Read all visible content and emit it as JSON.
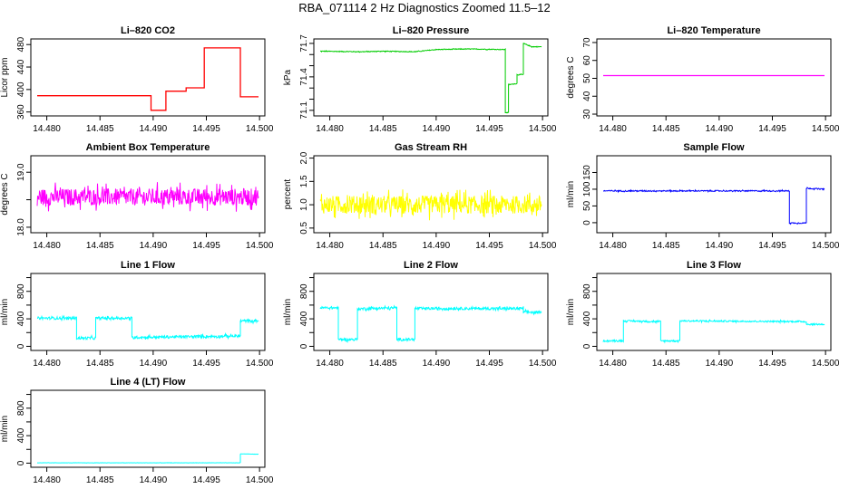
{
  "page": {
    "title": "RBA_071114  2 Hz Diagnostics Zoomed 11.5–12"
  },
  "colors": {
    "red": "#ff0000",
    "green": "#00cc00",
    "magenta": "#ff00ff",
    "yellow": "#ffff00",
    "blue": "#0000ff",
    "cyan": "#00ffff"
  },
  "chart_data": [
    {
      "type": "line",
      "title": "Li–820 CO2",
      "ylabel": "Licor ppm",
      "color": "#ff0000",
      "xlim": [
        14.4785,
        14.5005
      ],
      "ylim": [
        353,
        490
      ],
      "xticks": [
        14.48,
        14.485,
        14.49,
        14.495,
        14.5
      ],
      "xticklabels": [
        "14.480",
        "14.485",
        "14.490",
        "14.495",
        "14.500"
      ],
      "yticks": [
        360,
        400,
        440,
        480
      ],
      "yticklabels": [
        "360",
        "400",
        "440",
        "480"
      ],
      "noise": 0,
      "x": [
        14.4791,
        14.4898,
        14.4898,
        14.4912,
        14.4912,
        14.4931,
        14.4931,
        14.4948,
        14.4948,
        14.4982,
        14.4982,
        14.4999
      ],
      "y": [
        389,
        389,
        363,
        363,
        397,
        397,
        403,
        403,
        474,
        474,
        387,
        387
      ]
    },
    {
      "type": "line",
      "title": "Li–820 Pressure",
      "ylabel": "kPa",
      "color": "#00cc00",
      "xlim": [
        14.4785,
        14.5005
      ],
      "ylim": [
        71.05,
        71.74
      ],
      "xticks": [
        14.48,
        14.485,
        14.49,
        14.495,
        14.5
      ],
      "xticklabels": [
        "14.480",
        "14.485",
        "14.490",
        "14.495",
        "14.500"
      ],
      "yticks": [
        71.1,
        71.4,
        71.7
      ],
      "yticklabels": [
        "71.1",
        "71.4",
        "71.7"
      ],
      "ytickminor": [
        71.2,
        71.3,
        71.5,
        71.6
      ],
      "noise": 0.006,
      "x": [
        14.4791,
        14.483,
        14.485,
        14.488,
        14.49,
        14.493,
        14.4965,
        14.4965,
        14.4968,
        14.4968,
        14.4976,
        14.4976,
        14.4982,
        14.4982,
        14.499,
        14.4999
      ],
      "y": [
        71.63,
        71.625,
        71.63,
        71.625,
        71.645,
        71.65,
        71.645,
        71.08,
        71.08,
        71.33,
        71.34,
        71.42,
        71.42,
        71.7,
        71.67,
        71.67
      ]
    },
    {
      "type": "line",
      "title": "Li–820 Temperature",
      "ylabel": "degrees C",
      "color": "#ff00ff",
      "xlim": [
        14.4785,
        14.5005
      ],
      "ylim": [
        29,
        72
      ],
      "xticks": [
        14.48,
        14.485,
        14.49,
        14.495,
        14.5
      ],
      "xticklabels": [
        "14.480",
        "14.485",
        "14.490",
        "14.495",
        "14.500"
      ],
      "yticks": [
        30,
        40,
        50,
        60,
        70
      ],
      "yticklabels": [
        "30",
        "40",
        "50",
        "60",
        "70"
      ],
      "noise": 0,
      "x": [
        14.4791,
        14.4999
      ],
      "y": [
        51.5,
        51.5
      ]
    },
    {
      "type": "line",
      "title": "Ambient Box Temperature",
      "ylabel": "degrees C",
      "color": "#ff00ff",
      "xlim": [
        14.4785,
        14.5005
      ],
      "ylim": [
        17.9,
        19.3
      ],
      "xticks": [
        14.48,
        14.485,
        14.49,
        14.495,
        14.5
      ],
      "xticklabels": [
        "14.480",
        "14.485",
        "14.490",
        "14.495",
        "14.500"
      ],
      "yticks": [
        18.0,
        18.5,
        19.0
      ],
      "yticklabels": [
        "18.0",
        "",
        "19.0"
      ],
      "noise": 0.28,
      "x": [
        14.4791,
        14.4999
      ],
      "y": [
        18.55,
        18.55
      ]
    },
    {
      "type": "line",
      "title": "Gas Stream RH",
      "ylabel": "percent",
      "color": "#ffff00",
      "xlim": [
        14.4785,
        14.5005
      ],
      "ylim": [
        0.4,
        2.05
      ],
      "xticks": [
        14.48,
        14.485,
        14.49,
        14.495,
        14.5
      ],
      "xticklabels": [
        "14.480",
        "14.485",
        "14.490",
        "14.495",
        "14.500"
      ],
      "yticks": [
        0.5,
        1.0,
        1.5,
        2.0
      ],
      "yticklabels": [
        "0.5",
        "1.0",
        "1.5",
        "2.0"
      ],
      "noise": 0.35,
      "x": [
        14.4791,
        14.4999
      ],
      "y": [
        1.0,
        1.0
      ]
    },
    {
      "type": "line",
      "title": "Sample Flow",
      "ylabel": "ml/min",
      "color": "#0000ff",
      "xlim": [
        14.4785,
        14.5005
      ],
      "ylim": [
        -30,
        200
      ],
      "xticks": [
        14.48,
        14.485,
        14.49,
        14.495,
        14.5
      ],
      "xticklabels": [
        "14.480",
        "14.485",
        "14.490",
        "14.495",
        "14.500"
      ],
      "yticks": [
        0,
        50,
        100,
        150
      ],
      "yticklabels": [
        "0",
        "50",
        "100",
        "150"
      ],
      "noise": 3,
      "x": [
        14.4791,
        14.4966,
        14.4966,
        14.4982,
        14.4982,
        14.4999
      ],
      "y": [
        95,
        95,
        -1,
        -1,
        103,
        100
      ]
    },
    {
      "type": "line",
      "title": "Line 1 Flow",
      "ylabel": "ml/min",
      "color": "#00ffff",
      "xlim": [
        14.4785,
        14.5005
      ],
      "ylim": [
        -60,
        1060
      ],
      "xticks": [
        14.48,
        14.485,
        14.49,
        14.495,
        14.5
      ],
      "xticklabels": [
        "14.480",
        "14.485",
        "14.490",
        "14.495",
        "14.500"
      ],
      "yticks": [
        0,
        400,
        800
      ],
      "yticklabels": [
        "0",
        "400",
        "800"
      ],
      "ytickminor": [
        200,
        600,
        1000
      ],
      "noise": 35,
      "x": [
        14.4791,
        14.4828,
        14.4828,
        14.4846,
        14.4846,
        14.488,
        14.488,
        14.4982,
        14.4982,
        14.4999
      ],
      "y": [
        410,
        410,
        120,
        120,
        410,
        410,
        130,
        150,
        370,
        370
      ]
    },
    {
      "type": "line",
      "title": "Line 2 Flow",
      "ylabel": "ml/min",
      "color": "#00ffff",
      "xlim": [
        14.4785,
        14.5005
      ],
      "ylim": [
        -60,
        1060
      ],
      "xticks": [
        14.48,
        14.485,
        14.49,
        14.495,
        14.5
      ],
      "xticklabels": [
        "14.480",
        "14.485",
        "14.490",
        "14.495",
        "14.500"
      ],
      "yticks": [
        0,
        400,
        800
      ],
      "yticklabels": [
        "0",
        "400",
        "800"
      ],
      "ytickminor": [
        200,
        600,
        1000
      ],
      "noise": 35,
      "x": [
        14.4791,
        14.4808,
        14.4808,
        14.4826,
        14.4826,
        14.4863,
        14.4863,
        14.488,
        14.488,
        14.4982,
        14.4982,
        14.4999
      ],
      "y": [
        560,
        560,
        100,
        100,
        545,
        560,
        100,
        100,
        550,
        550,
        500,
        490
      ]
    },
    {
      "type": "line",
      "title": "Line 3 Flow",
      "ylabel": "ml/min",
      "color": "#00ffff",
      "xlim": [
        14.4785,
        14.5005
      ],
      "ylim": [
        -60,
        1060
      ],
      "xticks": [
        14.48,
        14.485,
        14.49,
        14.495,
        14.5
      ],
      "xticklabels": [
        "14.480",
        "14.485",
        "14.490",
        "14.495",
        "14.500"
      ],
      "yticks": [
        0,
        400,
        800
      ],
      "yticklabels": [
        "0",
        "400",
        "800"
      ],
      "ytickminor": [
        200,
        600,
        1000
      ],
      "noise": 20,
      "x": [
        14.4791,
        14.481,
        14.481,
        14.4845,
        14.4845,
        14.4863,
        14.4863,
        14.4982,
        14.4982,
        14.4999
      ],
      "y": [
        80,
        80,
        370,
        360,
        80,
        80,
        370,
        360,
        320,
        320
      ]
    },
    {
      "type": "line",
      "title": "Line 4 (LT) Flow",
      "ylabel": "ml/min",
      "color": "#00ffff",
      "xlim": [
        14.4785,
        14.5005
      ],
      "ylim": [
        -60,
        1060
      ],
      "xticks": [
        14.48,
        14.485,
        14.49,
        14.495,
        14.5
      ],
      "xticklabels": [
        "14.480",
        "14.485",
        "14.490",
        "14.495",
        "14.500"
      ],
      "yticks": [
        0,
        400,
        800
      ],
      "yticklabels": [
        "0",
        "400",
        "800"
      ],
      "ytickminor": [
        200,
        600,
        1000
      ],
      "noise": 3,
      "x": [
        14.4791,
        14.4982,
        14.4982,
        14.4999
      ],
      "y": [
        5,
        5,
        135,
        130
      ]
    }
  ]
}
